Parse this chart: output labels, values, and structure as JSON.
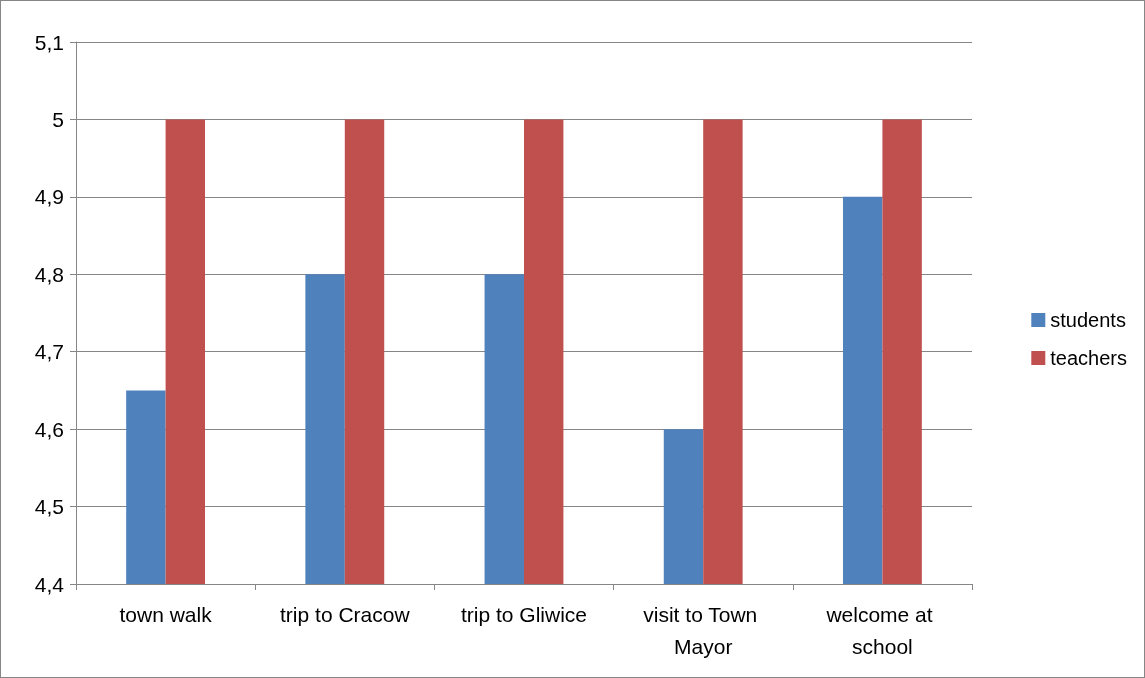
{
  "chart_data": {
    "type": "bar",
    "categories": [
      "town walk",
      "trip to Cracow",
      "trip to Gliwice",
      "visit to Town Mayor",
      "welcome at school"
    ],
    "series": [
      {
        "name": "students",
        "color": "#4f81bd",
        "values": [
          4.65,
          4.8,
          4.8,
          4.6,
          4.9
        ]
      },
      {
        "name": "teachers",
        "color": "#c0504d",
        "values": [
          5,
          5,
          5,
          5,
          5
        ]
      }
    ],
    "ylim": [
      4.4,
      5.1
    ],
    "yticks": [
      {
        "value": 4.4,
        "label": "4,4"
      },
      {
        "value": 4.5,
        "label": "4,5"
      },
      {
        "value": 4.6,
        "label": "4,6"
      },
      {
        "value": 4.7,
        "label": "4,7"
      },
      {
        "value": 4.8,
        "label": "4,8"
      },
      {
        "value": 4.9,
        "label": "4,9"
      },
      5,
      {
        "value": 5.1,
        "label": "5,1"
      }
    ],
    "grid": "y",
    "legend": "right"
  }
}
